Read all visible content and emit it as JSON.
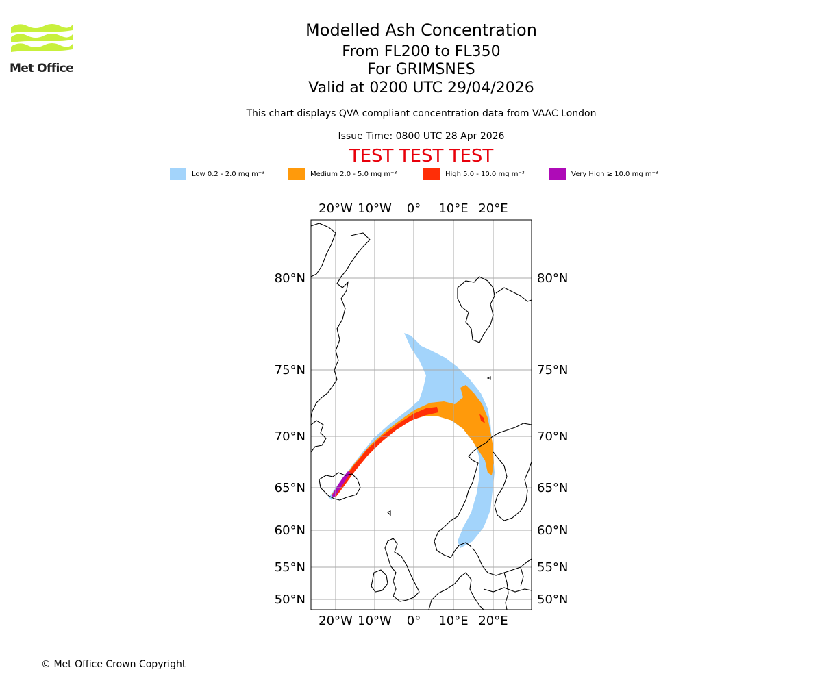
{
  "logo": {
    "text": "Met Office",
    "color": "#c8f03c"
  },
  "title": {
    "main": "Modelled Ash Concentration",
    "flight_levels": "From FL200 to FL350",
    "volcano": "For GRIMSNES",
    "valid": "Valid at 0200 UTC 29/04/2026",
    "subtitle": "This chart displays QVA compliant concentration data from VAAC London",
    "issue_time": "Issue Time: 0800 UTC 28 Apr 2026",
    "test_banner": "TEST TEST TEST"
  },
  "legend": [
    {
      "label": "Low 0.2 - 2.0 mg m⁻³",
      "color": "#a3d4fb"
    },
    {
      "label": "Medium 2.0 - 5.0 mg m⁻³",
      "color": "#ff9a0b"
    },
    {
      "label": "High 5.0 - 10.0 mg m⁻³",
      "color": "#ff2e07"
    },
    {
      "label": "Very High ≥ 10.0 mg m⁻³",
      "color": "#ae0bb7"
    }
  ],
  "map": {
    "lon_labels": [
      "20°W",
      "10°W",
      "0°",
      "10°E",
      "20°E"
    ],
    "lat_labels": [
      "80°N",
      "75°N",
      "70°N",
      "65°N",
      "60°N",
      "55°N",
      "50°N"
    ]
  },
  "footer": {
    "copyright": "© Met Office Crown Copyright"
  }
}
